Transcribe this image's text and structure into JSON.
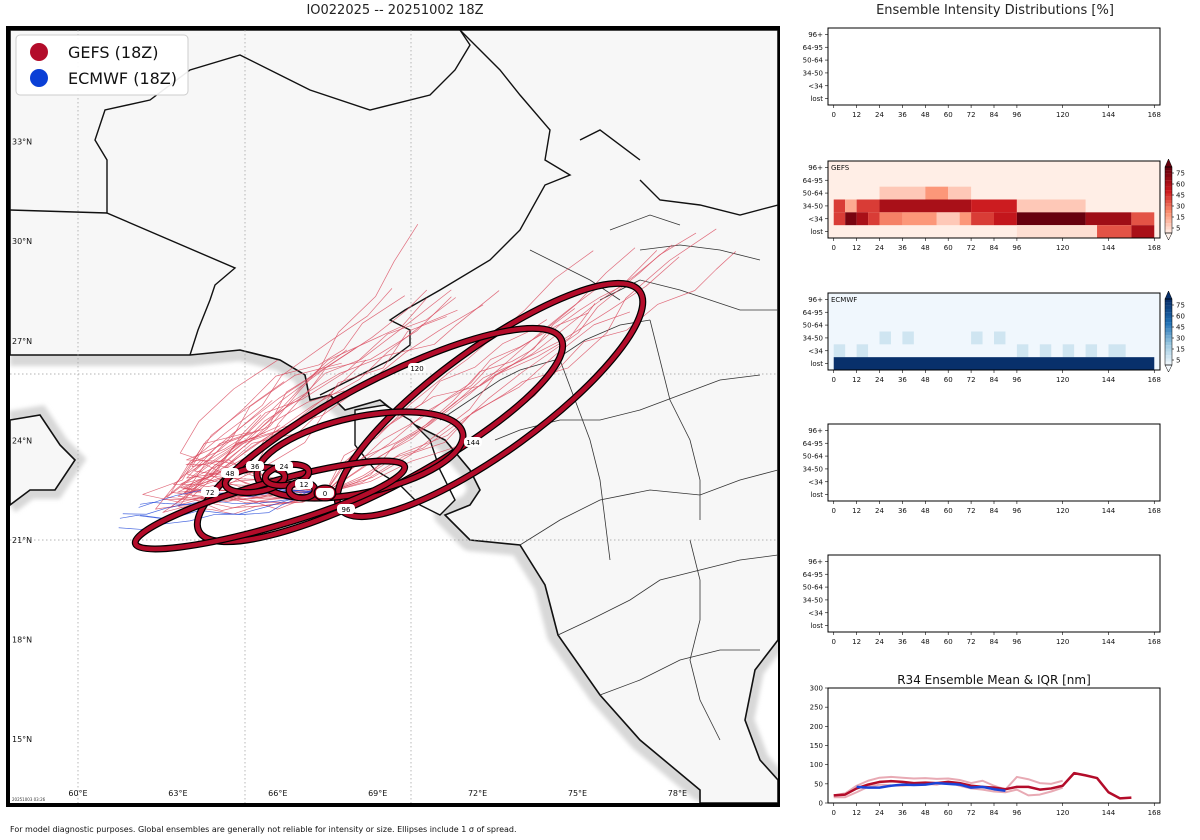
{
  "title": "IO022025 -- 20251002 18Z",
  "right_title": "Ensemble Intensity Distributions [%]",
  "footer": "For model diagnostic purposes. Global ensembles are generally not reliable for intensity or size. Ellipses include 1 σ of spread.",
  "stamp": "20251003 03:26",
  "colors": {
    "gefs": "#b30c2a",
    "ecmwf": "#1b44d8",
    "land": "#f7f7f7",
    "sea": "#ffffff"
  },
  "legend": [
    {
      "label": "GEFS (18Z)",
      "color": "#b30c2a"
    },
    {
      "label": "ECMWF (18Z)",
      "color": "#0a3fd6"
    }
  ],
  "map": {
    "lat_labels": [
      "33°N",
      "30°N",
      "27°N",
      "24°N",
      "21°N",
      "18°N",
      "15°N"
    ],
    "lat_values": [
      33,
      30,
      27,
      24,
      21,
      18,
      15
    ],
    "lon_labels": [
      "60°E",
      "63°E",
      "66°E",
      "69°E",
      "72°E",
      "75°E",
      "78°E"
    ],
    "lon_values": [
      60,
      63,
      66,
      69,
      72,
      75,
      78
    ],
    "track_hours": [
      "0",
      "12",
      "24",
      "36",
      "48",
      "72",
      "96",
      "120",
      "144"
    ]
  },
  "chart_data": [
    {
      "type": "heatmap",
      "name": "blank-top",
      "rows": [
        "96+",
        "64-95",
        "50-64",
        "34-50",
        "<34",
        "lost"
      ],
      "xticks": [
        "0",
        "12",
        "24",
        "36",
        "48",
        "60",
        "72",
        "84",
        "96",
        "120",
        "144",
        "168"
      ],
      "cells": []
    },
    {
      "type": "heatmap",
      "name": "GEFS",
      "label": "GEFS",
      "colormap": "Reds",
      "rows": [
        "96+",
        "64-95",
        "50-64",
        "34-50",
        "<34",
        "lost"
      ],
      "xticks": [
        "0",
        "12",
        "24",
        "36",
        "48",
        "60",
        "72",
        "84",
        "96",
        "120",
        "144",
        "168"
      ],
      "colorbar_ticks": [
        "75",
        "60",
        "45",
        "30",
        "15",
        "5"
      ],
      "vmax": 80,
      "background": 2,
      "cells": [
        {
          "row": "50-64",
          "t0": 24,
          "t1": 48,
          "v": 12
        },
        {
          "row": "50-64",
          "t0": 48,
          "t1": 60,
          "v": 25
        },
        {
          "row": "50-64",
          "t0": 60,
          "t1": 72,
          "v": 12
        },
        {
          "row": "34-50",
          "t0": 0,
          "t1": 6,
          "v": 45
        },
        {
          "row": "34-50",
          "t0": 6,
          "t1": 12,
          "v": 20
        },
        {
          "row": "34-50",
          "t0": 12,
          "t1": 24,
          "v": 45
        },
        {
          "row": "34-50",
          "t0": 24,
          "t1": 72,
          "v": 62
        },
        {
          "row": "34-50",
          "t0": 72,
          "t1": 96,
          "v": 52
        },
        {
          "row": "34-50",
          "t0": 96,
          "t1": 132,
          "v": 12
        },
        {
          "row": "<34",
          "t0": 0,
          "t1": 6,
          "v": 45
        },
        {
          "row": "<34",
          "t0": 6,
          "t1": 12,
          "v": 75
        },
        {
          "row": "<34",
          "t0": 12,
          "t1": 18,
          "v": 62
        },
        {
          "row": "<34",
          "t0": 18,
          "t1": 24,
          "v": 45
        },
        {
          "row": "<34",
          "t0": 24,
          "t1": 36,
          "v": 30
        },
        {
          "row": "<34",
          "t0": 36,
          "t1": 54,
          "v": 25
        },
        {
          "row": "<34",
          "t0": 54,
          "t1": 66,
          "v": 12
        },
        {
          "row": "<34",
          "t0": 66,
          "t1": 72,
          "v": 25
        },
        {
          "row": "<34",
          "t0": 72,
          "t1": 84,
          "v": 45
        },
        {
          "row": "<34",
          "t0": 84,
          "t1": 96,
          "v": 55
        },
        {
          "row": "<34",
          "t0": 96,
          "t1": 132,
          "v": 80
        },
        {
          "row": "<34",
          "t0": 132,
          "t1": 156,
          "v": 65
        },
        {
          "row": "<34",
          "t0": 156,
          "t1": 168,
          "v": 40
        },
        {
          "row": "lost",
          "t0": 96,
          "t1": 138,
          "v": 6
        },
        {
          "row": "lost",
          "t0": 138,
          "t1": 156,
          "v": 40
        },
        {
          "row": "lost",
          "t0": 156,
          "t1": 168,
          "v": 62
        }
      ]
    },
    {
      "type": "heatmap",
      "name": "ECMWF",
      "label": "ECMWF",
      "colormap": "Blues",
      "rows": [
        "96+",
        "64-95",
        "50-64",
        "34-50",
        "<34",
        "lost"
      ],
      "xticks": [
        "0",
        "12",
        "24",
        "36",
        "48",
        "60",
        "72",
        "84",
        "96",
        "120",
        "144",
        "168"
      ],
      "colorbar_ticks": [
        "75",
        "60",
        "45",
        "30",
        "15",
        "5"
      ],
      "vmax": 80,
      "background": 2,
      "cells": [
        {
          "row": "34-50",
          "t0": 24,
          "t1": 30,
          "v": 12
        },
        {
          "row": "34-50",
          "t0": 36,
          "t1": 42,
          "v": 12
        },
        {
          "row": "34-50",
          "t0": 72,
          "t1": 78,
          "v": 12
        },
        {
          "row": "34-50",
          "t0": 84,
          "t1": 90,
          "v": 12
        },
        {
          "row": "<34",
          "t0": 0,
          "t1": 6,
          "v": 12
        },
        {
          "row": "<34",
          "t0": 12,
          "t1": 18,
          "v": 12
        },
        {
          "row": "<34",
          "t0": 96,
          "t1": 102,
          "v": 12
        },
        {
          "row": "<34",
          "t0": 108,
          "t1": 114,
          "v": 12
        },
        {
          "row": "<34",
          "t0": 120,
          "t1": 126,
          "v": 12
        },
        {
          "row": "<34",
          "t0": 132,
          "t1": 138,
          "v": 12
        },
        {
          "row": "<34",
          "t0": 144,
          "t1": 153,
          "v": 12
        },
        {
          "row": "lost",
          "t0": 0,
          "t1": 168,
          "v": 80
        }
      ]
    },
    {
      "type": "heatmap",
      "name": "blank-4",
      "rows": [
        "96+",
        "64-95",
        "50-64",
        "34-50",
        "<34",
        "lost"
      ],
      "xticks": [
        "0",
        "12",
        "24",
        "36",
        "48",
        "60",
        "72",
        "84",
        "96",
        "120",
        "144",
        "168"
      ],
      "cells": []
    },
    {
      "type": "heatmap",
      "name": "blank-5",
      "rows": [
        "96+",
        "64-95",
        "50-64",
        "34-50",
        "<34",
        "lost"
      ],
      "xticks": [
        "0",
        "12",
        "24",
        "36",
        "48",
        "60",
        "72",
        "84",
        "96",
        "120",
        "144",
        "168"
      ],
      "cells": []
    },
    {
      "type": "line",
      "name": "R34",
      "title": "R34 Ensemble Mean & IQR [nm]",
      "xticks": [
        "0",
        "12",
        "24",
        "36",
        "48",
        "60",
        "72",
        "84",
        "96",
        "120",
        "144",
        "168"
      ],
      "yticks": [
        "300",
        "250",
        "200",
        "150",
        "100",
        "50",
        "0"
      ],
      "ylim": [
        0,
        300
      ],
      "xlim": [
        -3,
        171
      ],
      "series": [
        {
          "name": "GEFS IQR upper",
          "color": "#e8aab4",
          "width": 2,
          "x": [
            0,
            6,
            12,
            18,
            24,
            30,
            36,
            42,
            48,
            54,
            60,
            66,
            72,
            78,
            84,
            90,
            96,
            102,
            108,
            114,
            120
          ],
          "y": [
            20,
            25,
            45,
            58,
            66,
            68,
            66,
            64,
            65,
            63,
            64,
            60,
            52,
            58,
            45,
            35,
            68,
            62,
            52,
            50,
            58
          ]
        },
        {
          "name": "GEFS IQR lower",
          "color": "#e8aab4",
          "width": 2,
          "x": [
            0,
            6,
            12,
            18,
            24,
            30,
            36,
            42,
            48,
            54,
            60,
            66,
            72,
            78,
            84,
            90,
            96,
            102,
            108,
            114,
            120
          ],
          "y": [
            15,
            15,
            28,
            42,
            48,
            46,
            45,
            48,
            50,
            48,
            55,
            45,
            38,
            35,
            30,
            28,
            35,
            20,
            22,
            30,
            40
          ]
        },
        {
          "name": "GEFS mean",
          "color": "#b30c2a",
          "width": 2.5,
          "x": [
            0,
            6,
            12,
            18,
            24,
            30,
            36,
            42,
            48,
            54,
            60,
            66,
            72,
            78,
            84,
            90,
            96,
            102,
            108,
            114,
            120,
            126,
            132,
            138,
            144,
            150,
            156
          ],
          "y": [
            20,
            22,
            38,
            48,
            55,
            57,
            55,
            52,
            53,
            52,
            55,
            52,
            45,
            42,
            40,
            36,
            42,
            42,
            35,
            38,
            45,
            78,
            72,
            65,
            28,
            12,
            14
          ]
        },
        {
          "name": "ECMWF mean",
          "color": "#1b44d8",
          "width": 2.5,
          "x": [
            12,
            18,
            24,
            30,
            36,
            42,
            48,
            54,
            60,
            66,
            72,
            78,
            84,
            90
          ],
          "y": [
            42,
            40,
            40,
            45,
            48,
            47,
            48,
            52,
            50,
            48,
            40,
            42,
            36,
            32
          ]
        }
      ]
    }
  ]
}
